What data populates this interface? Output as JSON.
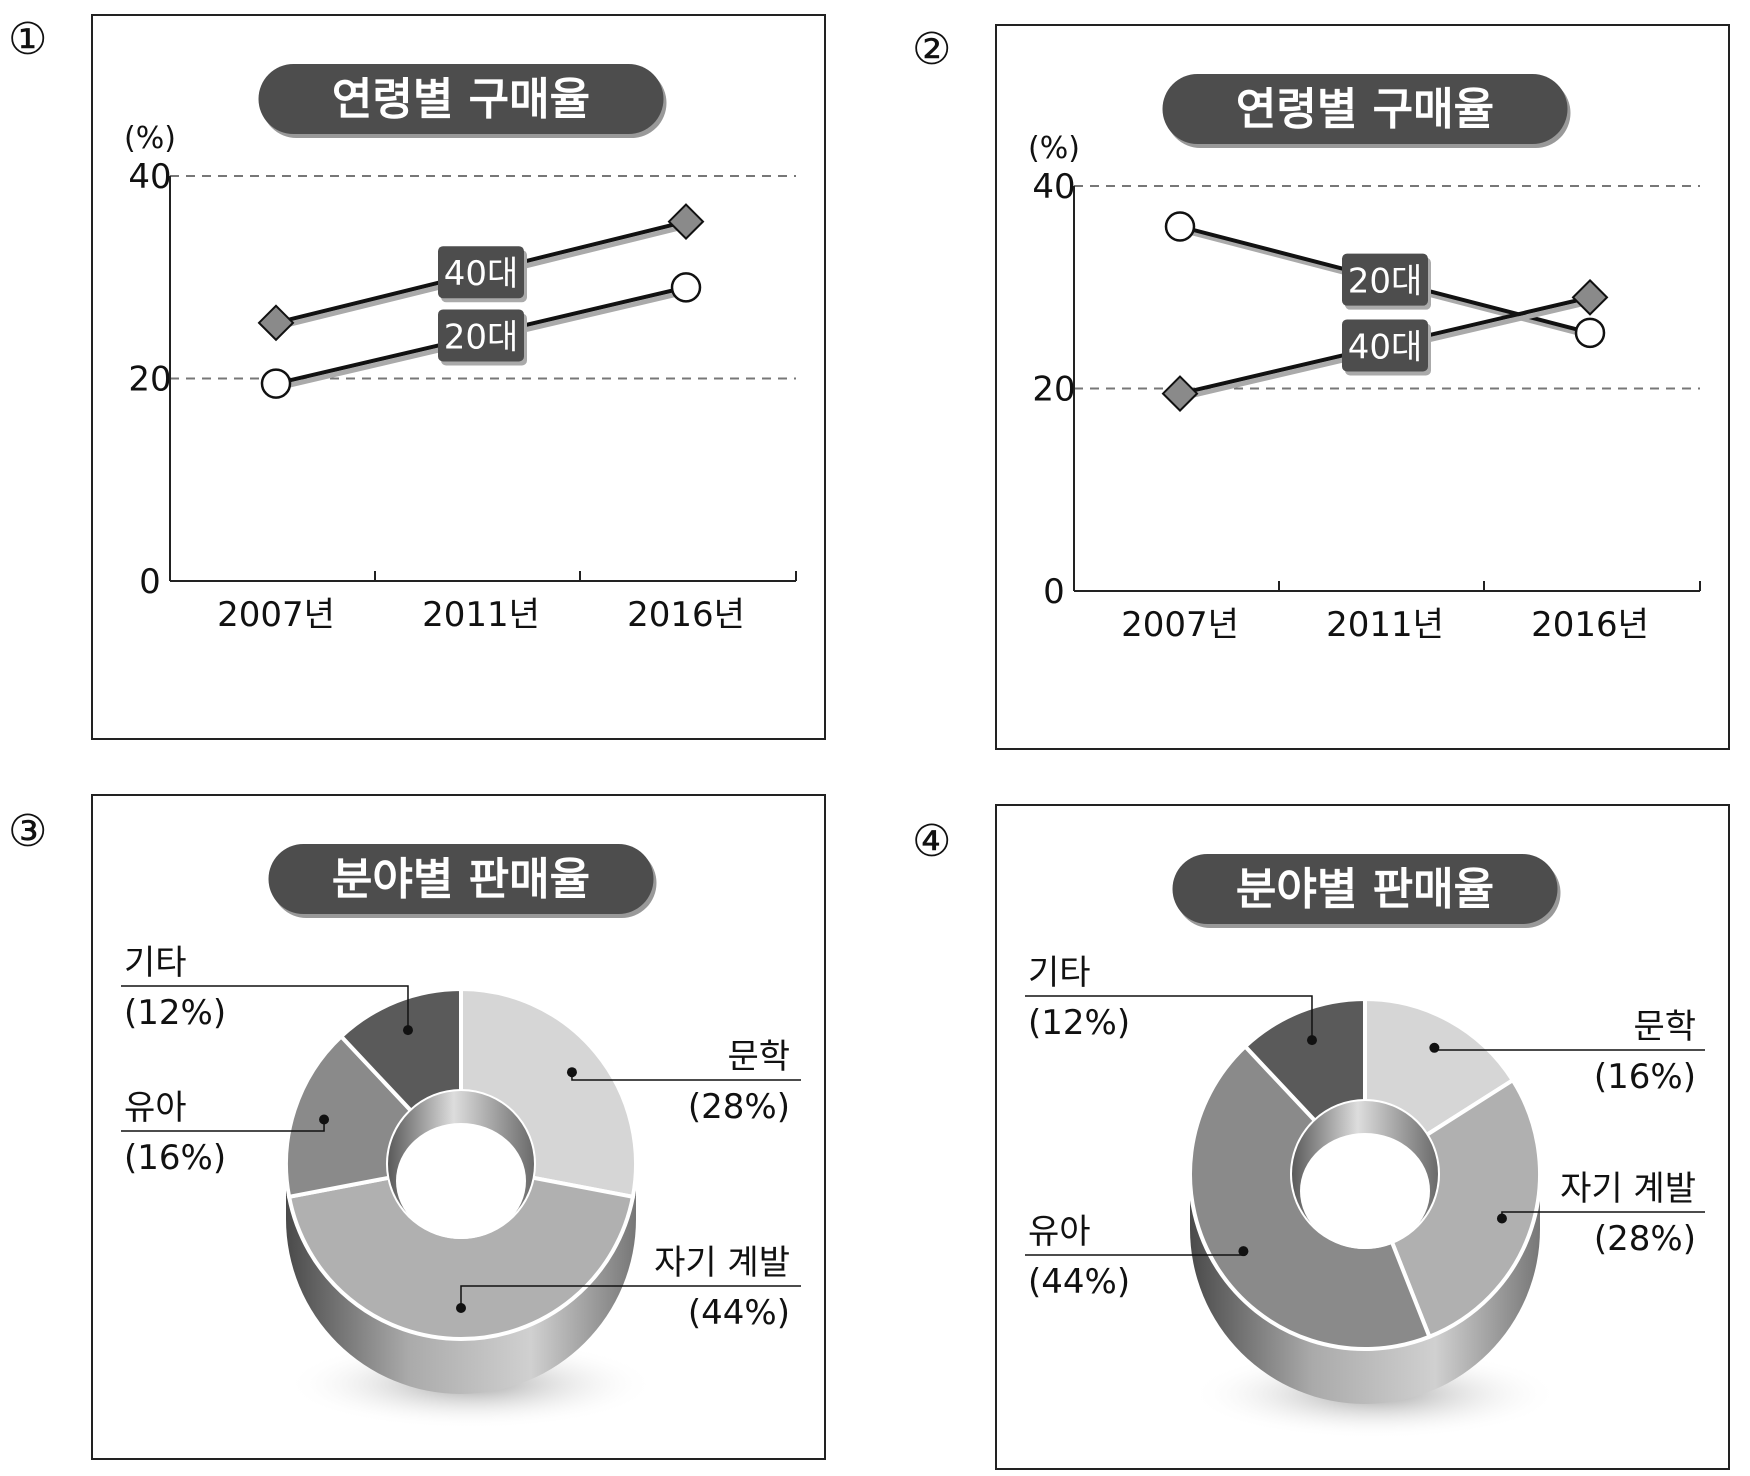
{
  "numbers": [
    "①",
    "②",
    "③",
    "④"
  ],
  "chart_data": [
    {
      "type": "line",
      "title": "연령별 구매율",
      "ylabel": "(%)",
      "ylim": [
        0,
        40
      ],
      "yticks": [
        "0",
        "20",
        "40"
      ],
      "categories": [
        "2007년",
        "2011년",
        "2016년"
      ],
      "grid": "dashed at 20 and 40",
      "series": [
        {
          "name": "40대",
          "marker": "diamond",
          "values": [
            25.5,
            null,
            35.5
          ]
        },
        {
          "name": "20대",
          "marker": "circle",
          "values": [
            19.5,
            null,
            29
          ]
        }
      ]
    },
    {
      "type": "line",
      "title": "연령별 구매율",
      "ylabel": "(%)",
      "ylim": [
        0,
        40
      ],
      "yticks": [
        "0",
        "20",
        "40"
      ],
      "categories": [
        "2007년",
        "2011년",
        "2016년"
      ],
      "grid": "dashed at 20 and 40",
      "series": [
        {
          "name": "20대",
          "marker": "circle",
          "values": [
            36,
            null,
            25.5
          ]
        },
        {
          "name": "40대",
          "marker": "diamond",
          "values": [
            19.5,
            null,
            29
          ]
        }
      ]
    },
    {
      "type": "pie",
      "style": "donut",
      "title": "분야별 판매율",
      "slices": [
        {
          "name": "문학",
          "pct": "(28%)",
          "value": 28,
          "color": "#d6d6d6"
        },
        {
          "name": "자기 계발",
          "pct": "(44%)",
          "value": 44,
          "color": "#b0b0b0"
        },
        {
          "name": "유아",
          "pct": "(16%)",
          "value": 16,
          "color": "#8a8a8a"
        },
        {
          "name": "기타",
          "pct": "(12%)",
          "value": 12,
          "color": "#5a5a5a"
        }
      ]
    },
    {
      "type": "pie",
      "style": "donut",
      "title": "분야별 판매율",
      "slices": [
        {
          "name": "문학",
          "pct": "(16%)",
          "value": 16,
          "color": "#d6d6d6"
        },
        {
          "name": "자기 계발",
          "pct": "(28%)",
          "value": 28,
          "color": "#b0b0b0"
        },
        {
          "name": "유아",
          "pct": "(44%)",
          "value": 44,
          "color": "#8a8a8a"
        },
        {
          "name": "기타",
          "pct": "(12%)",
          "value": 12,
          "color": "#5a5a5a"
        }
      ]
    }
  ]
}
